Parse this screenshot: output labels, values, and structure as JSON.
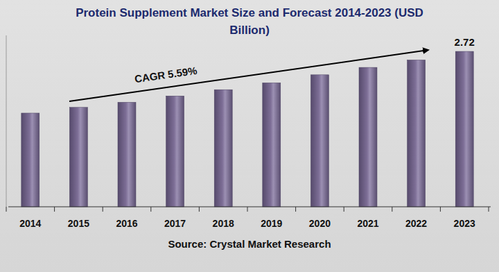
{
  "chart_data": {
    "type": "bar",
    "title": "Protein Supplement Market Size and Forecast 2014-2023 (USD Billion)",
    "categories": [
      "2014",
      "2015",
      "2016",
      "2017",
      "2018",
      "2019",
      "2020",
      "2021",
      "2022",
      "2023"
    ],
    "values": [
      1.64,
      1.74,
      1.83,
      1.94,
      2.05,
      2.17,
      2.31,
      2.44,
      2.57,
      2.72
    ],
    "value_labels": [
      null,
      null,
      null,
      null,
      null,
      null,
      null,
      null,
      null,
      "2.72"
    ],
    "color": "#7d6e96",
    "ylim": [
      0,
      3
    ],
    "grid": false,
    "tick_labels": "x",
    "annotations": [
      "CAGR 5.59%"
    ],
    "source": "Source: Crystal Market Research"
  }
}
